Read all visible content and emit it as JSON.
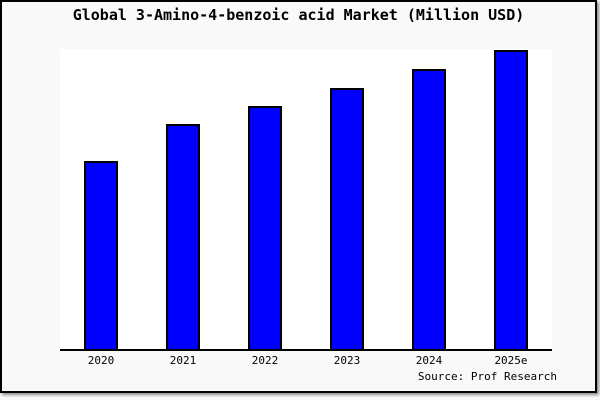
{
  "colors": {
    "page_background": "#f9f9f9",
    "plot_background": "#ffffff",
    "frame_border": "#000000",
    "axis_line": "#000000",
    "bar_fill": "#0000ff",
    "bar_border": "#000000",
    "text": "#000000"
  },
  "chart_data": {
    "type": "bar",
    "title": "Global 3-Amino-4-benzoic acid Market (Million USD)",
    "categories": [
      "2020",
      "2021",
      "2022",
      "2023",
      "2024",
      "2025e"
    ],
    "values": [
      189,
      227,
      245,
      263,
      282,
      301
    ],
    "xlabel": "",
    "ylabel": "Million USD",
    "ylim": [
      0,
      302
    ],
    "grid": false,
    "legend": false,
    "y_axis_visible": false,
    "source": "Source: Prof Research"
  }
}
